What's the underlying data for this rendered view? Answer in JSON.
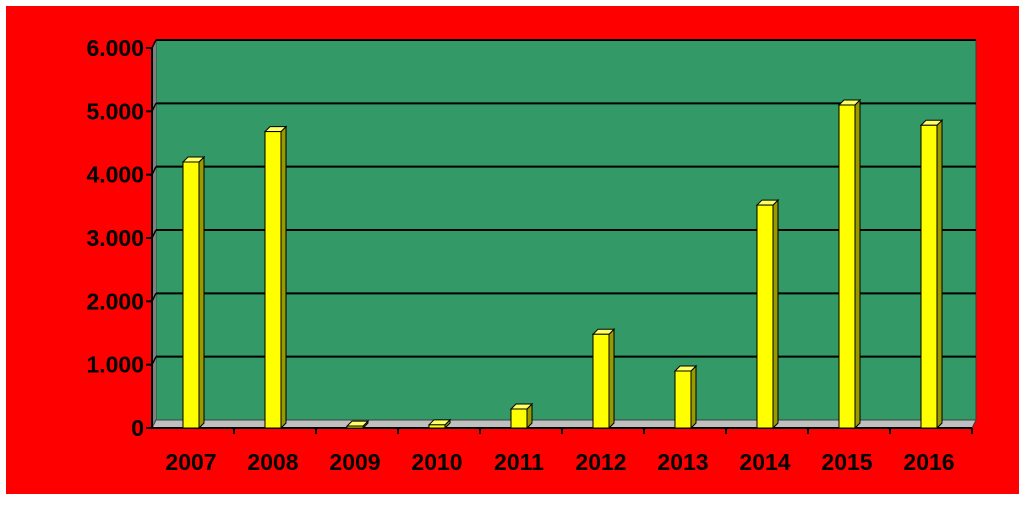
{
  "colors": {
    "background": "#ff0000",
    "plot_area": "#339966",
    "wall_side": "#808080",
    "floor": "#c0c0c0",
    "bar_front": "#ffff00",
    "bar_top": "#ffff66",
    "bar_side": "#999900",
    "gridline": "#000000",
    "text": "#000000"
  },
  "chart_data": {
    "type": "bar",
    "title": "",
    "xlabel": "",
    "ylabel": "",
    "categories": [
      "2007",
      "2008",
      "2009",
      "2010",
      "2011",
      "2012",
      "2013",
      "2014",
      "2015",
      "2016"
    ],
    "values": [
      4200,
      4680,
      30,
      50,
      300,
      1480,
      900,
      3520,
      5100,
      4780
    ],
    "ylim": [
      0,
      6000
    ],
    "yticks": [
      0,
      1000,
      2000,
      3000,
      4000,
      5000,
      6000
    ],
    "ytick_labels": [
      "0",
      "1.000",
      "2.000",
      "3.000",
      "4.000",
      "5.000",
      "6.000"
    ],
    "grid": true,
    "legend": "none"
  }
}
